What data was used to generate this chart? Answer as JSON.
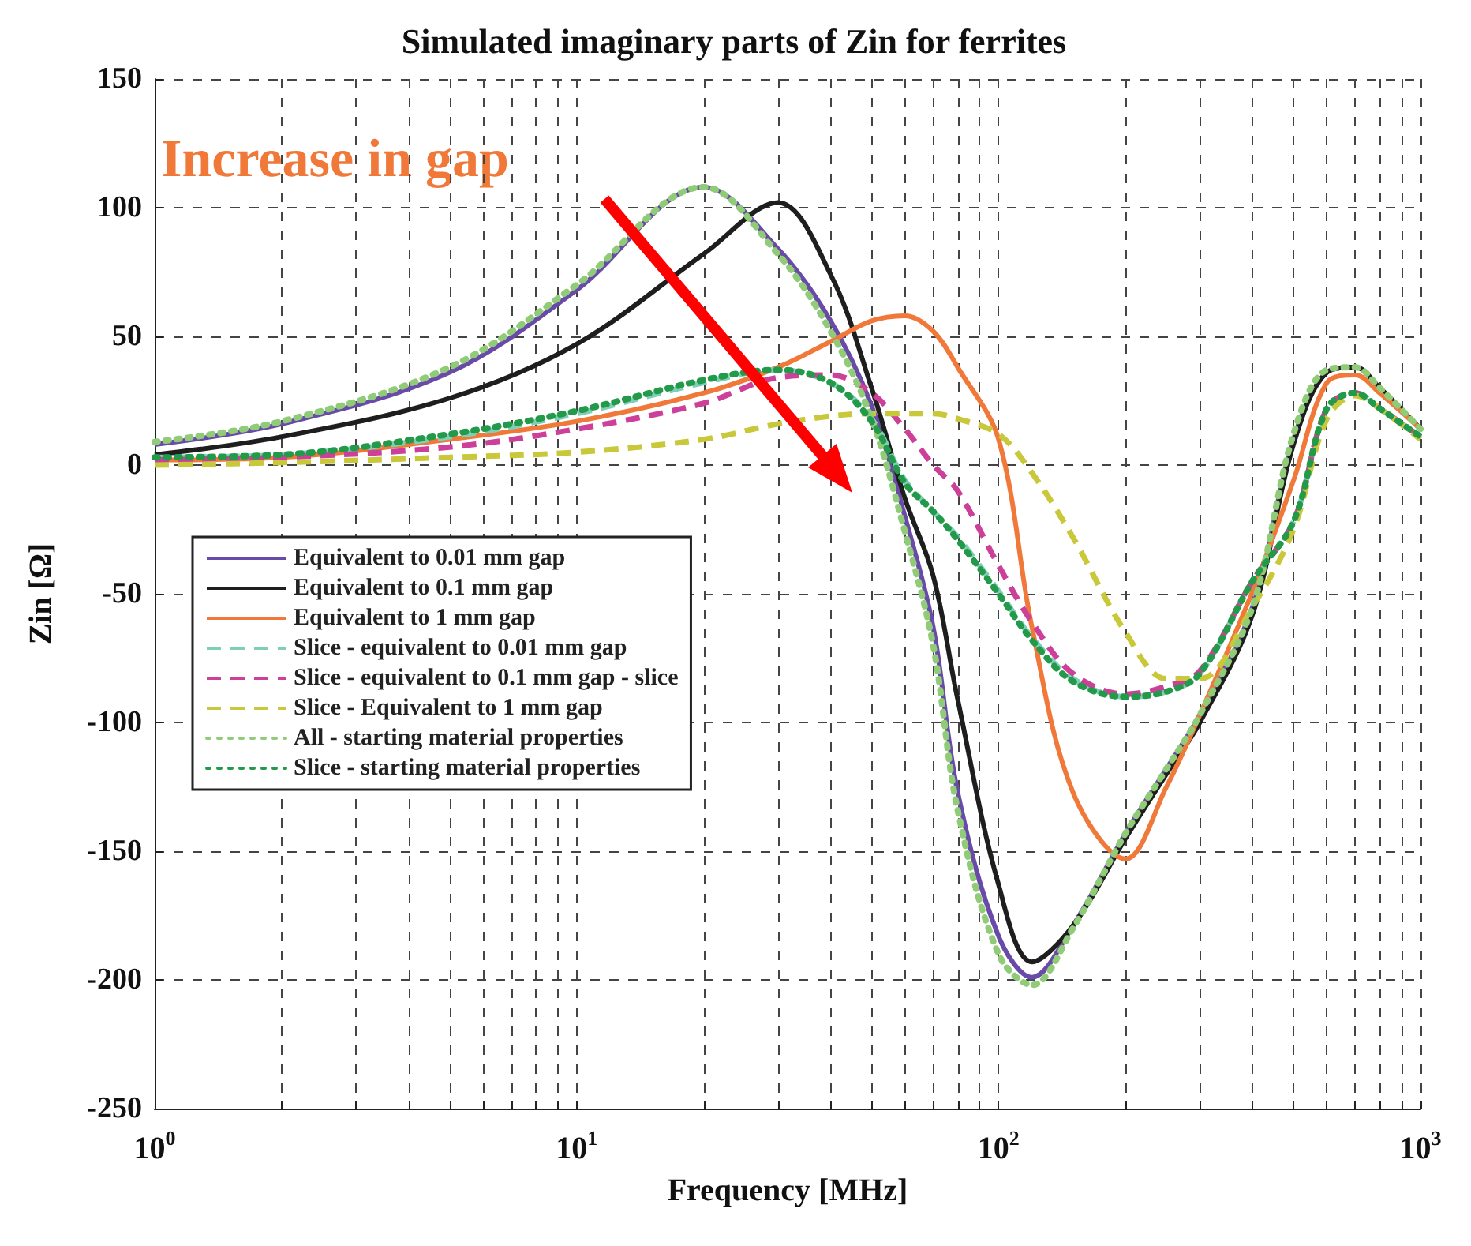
{
  "chart_data": {
    "type": "line",
    "title": "Simulated imaginary parts of Zin for ferrites",
    "xlabel": "Frequency [MHz]",
    "ylabel": "Zin [Ω]",
    "log": "x",
    "grid": true,
    "legend": "left",
    "xlim": [
      1,
      1000
    ],
    "ylim": [
      -250,
      150
    ],
    "xticks": [
      {
        "value": 1,
        "label": "10$^{0}$"
      },
      {
        "value": 10,
        "label": "10$^{1}$"
      },
      {
        "value": 100,
        "label": "10$^{2}$"
      },
      {
        "value": 1000,
        "label": "10$^{3}$"
      }
    ],
    "yticks": [
      -250,
      -200,
      -150,
      -100,
      -50,
      0,
      50,
      100,
      150
    ],
    "annotations": [
      "Increase in gap"
    ],
    "x": [
      1,
      2,
      5,
      10,
      20,
      30,
      40,
      50,
      60,
      70,
      80,
      100,
      120,
      150,
      200,
      250,
      300,
      400,
      500,
      600,
      700,
      800,
      1000
    ],
    "series": [
      {
        "name": "Equivalent to 0.01 mm gap",
        "color": "#6a4aa8",
        "line_style": "solid",
        "values": [
          8,
          16,
          36,
          68,
          108,
          84,
          56,
          23,
          -20,
          -63,
          -127,
          -183,
          -199,
          -179,
          -143,
          -118,
          -97,
          -55,
          10,
          36,
          38,
          30,
          14
        ]
      },
      {
        "name": "Equivalent to 0.1 mm gap",
        "color": "#1e1e1e",
        "line_style": "solid",
        "values": [
          4,
          11,
          26,
          47,
          82,
          102,
          74,
          30,
          -13,
          -43,
          -91,
          -163,
          -193,
          -179,
          -145,
          -120,
          -100,
          -58,
          8,
          36,
          38,
          30,
          14
        ]
      },
      {
        "name": "Equivalent to 1 mm gap",
        "color": "#f07838",
        "line_style": "solid",
        "values": [
          2,
          3,
          10,
          17,
          28,
          38,
          48,
          56,
          58,
          52,
          38,
          10,
          -63,
          -127,
          -153,
          -125,
          -97,
          -49,
          -6,
          32,
          35,
          28,
          14
        ]
      },
      {
        "name": "Slice - equivalent to 0.01 mm gap",
        "color": "#7ecfb5",
        "line_style": "dashed",
        "values": [
          3,
          4,
          11,
          20,
          32,
          37,
          32,
          18,
          -6,
          -18,
          -28,
          -49,
          -67,
          -83,
          -90,
          -88,
          -81,
          -45,
          -22,
          22,
          28,
          22,
          11
        ]
      },
      {
        "name": "Slice - equivalent to 0.1 mm gap - slice",
        "color": "#cc4099",
        "line_style": "dashed",
        "values": [
          2,
          3,
          7,
          14,
          24,
          34,
          35,
          28,
          14,
          0,
          -10,
          -39,
          -61,
          -81,
          -89,
          -86,
          -80,
          -45,
          -22,
          22,
          28,
          22,
          11
        ]
      },
      {
        "name": "Slice - Equivalent to 1 mm gap",
        "color": "#c8c83a",
        "line_style": "dashed",
        "values": [
          0,
          1,
          3,
          5,
          10,
          16,
          19,
          20,
          20,
          20,
          18,
          12,
          -3,
          -28,
          -65,
          -83,
          -83,
          -55,
          -25,
          18,
          27,
          22,
          10
        ]
      },
      {
        "name": "All - starting material properties",
        "color": "#90cc78",
        "line_style": "dotted",
        "values": [
          9,
          17,
          38,
          70,
          108,
          82,
          52,
          18,
          -26,
          -70,
          -134,
          -190,
          -202,
          -180,
          -143,
          -118,
          -97,
          -55,
          12,
          37,
          38,
          30,
          14
        ]
      },
      {
        "name": "Slice - starting material properties",
        "color": "#229a4a",
        "line_style": "dotted",
        "values": [
          3,
          4,
          12,
          21,
          33,
          37,
          32,
          17,
          -7,
          -18,
          -29,
          -50,
          -68,
          -84,
          -90,
          -88,
          -81,
          -45,
          -22,
          22,
          28,
          22,
          11
        ]
      }
    ]
  }
}
